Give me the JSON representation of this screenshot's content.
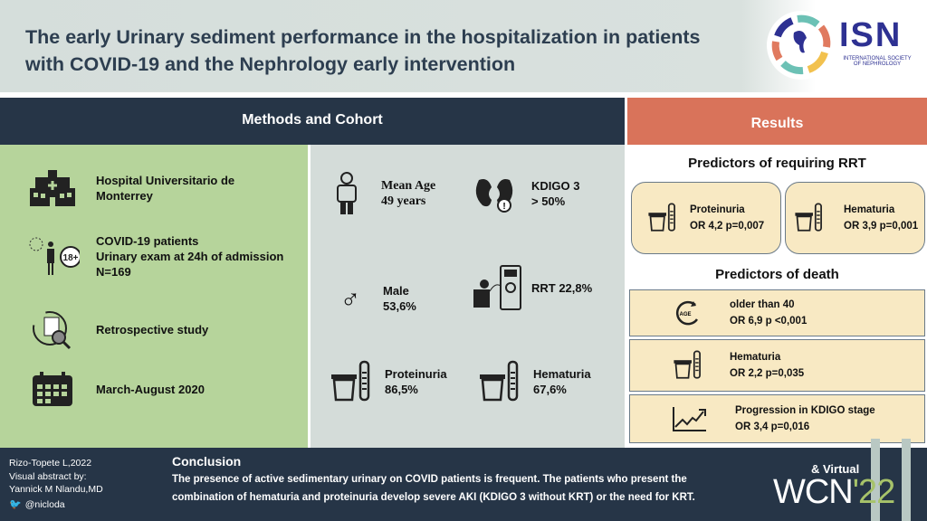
{
  "header": {
    "title_line1": "The early Urinary sediment performance in the hospitalization in patients",
    "title_line2": "with COVID-19 and the Nephrology early intervention",
    "logo": {
      "text": "ISN",
      "subtitle_line1": "INTERNATIONAL SOCIETY",
      "subtitle_line2": "OF NEPHROLOGY"
    }
  },
  "methods": {
    "heading": "Methods and Cohort",
    "left": [
      {
        "icon": "hospital-icon",
        "lines": [
          "Hospital Universitario de",
          "Monterrey"
        ]
      },
      {
        "icon": "covid-patient-icon",
        "badge": "18+",
        "lines": [
          "COVID-19 patients",
          "Urinary exam at 24h of admission",
          "N=169"
        ]
      },
      {
        "icon": "document-search-icon",
        "lines": [
          "Retrospective study"
        ]
      },
      {
        "icon": "calendar-icon",
        "lines": [
          "March-August 2020"
        ]
      }
    ],
    "stats": [
      {
        "icon": "person-icon",
        "lines": [
          "Mean Age",
          "49  years"
        ]
      },
      {
        "icon": "kidney-icon",
        "lines": [
          "KDIGO 3",
          "> 50%"
        ]
      },
      {
        "icon": "male-icon",
        "lines": [
          "Male",
          "53,6%"
        ]
      },
      {
        "icon": "dialysis-icon",
        "lines": [
          "RRT 22,8%"
        ]
      },
      {
        "icon": "urine-sample-icon",
        "lines": [
          "Proteinuria",
          "86,5%"
        ]
      },
      {
        "icon": "urine-sample-icon",
        "lines": [
          "Hematuria",
          "67,6%"
        ]
      }
    ]
  },
  "results": {
    "heading": "Results",
    "rrt": {
      "heading": "Predictors of requiring RRT",
      "items": [
        {
          "label": "Proteinuria",
          "stat": "OR 4,2 p=0,007"
        },
        {
          "label": "Hematuria",
          "stat": "OR 3,9 p=0,001"
        }
      ]
    },
    "death": {
      "heading": "Predictors of death",
      "age_icon_text": "AGE",
      "items": [
        {
          "icon": "age-icon",
          "label": "older than 40",
          "stat": "OR 6,9 p <0,001"
        },
        {
          "icon": "urine-sample-icon",
          "label": "Hematuria",
          "stat": "OR 2,2 p=0,035"
        },
        {
          "icon": "trend-up-icon",
          "label": "Progression in KDIGO stage",
          "stat": "OR 3,4 p=0,016"
        }
      ]
    }
  },
  "footer": {
    "credits": [
      "Rizo-Topete L,2022",
      "Visual abstract by:",
      "Yannick M Nlandu,MD"
    ],
    "twitter": "@nicloda",
    "conclusion_heading": "Conclusion",
    "conclusion_line1": "The presence of active sedimentary urinary on COVID patients is frequent. The patients who present the",
    "conclusion_line2": "combination of hematuria and proteinuria develop severe AKI (KDIGO 3 without KRT) or the need for KRT.",
    "event_top": "& Virtual",
    "event": "WCN",
    "event_year": "'22"
  },
  "colors": {
    "navy": "#263547",
    "results": "#d9735a",
    "green_panel": "#b6d49b",
    "card": "#f8e9c3"
  }
}
